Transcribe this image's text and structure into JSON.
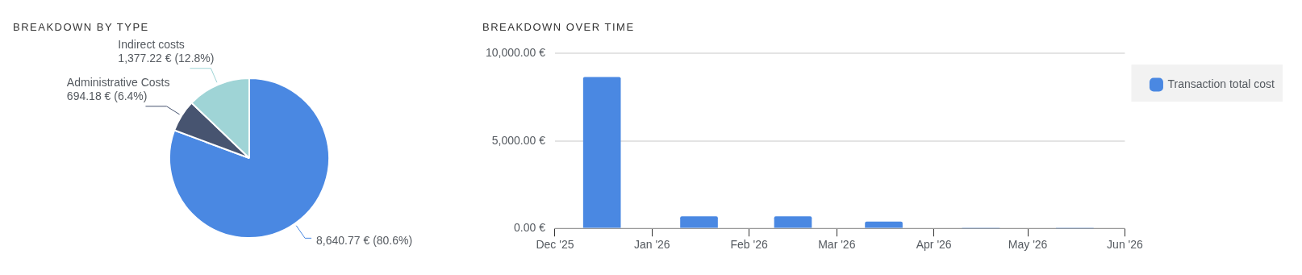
{
  "chart_data": [
    {
      "type": "pie",
      "title": "BREAKDOWN BY TYPE",
      "categories": [
        null,
        "Administrative Costs",
        "Indirect costs"
      ],
      "values": [
        8640.77,
        694.18,
        1377.22
      ],
      "colors": [
        "#4a88e2",
        "#475470",
        "#9fd4d6"
      ],
      "value_labels": [
        "8,640.77 € (80.6%)",
        "694.18 € (6.4%)",
        "1,377.22 € (12.8%)"
      ],
      "legend": false
    },
    {
      "type": "bar",
      "title": "BREAKDOWN OVER TIME",
      "x": [
        "2025-12-16",
        "2026-01-16",
        "2026-02-15",
        "2026-03-16",
        "2026-04-16",
        "2026-05-16"
      ],
      "series": [
        {
          "name": "Transaction total cost",
          "color": "#4a88e2",
          "values": [
            8640,
            680,
            680,
            370,
            0,
            0
          ]
        }
      ],
      "xlim": [
        "2025-12",
        "2026-06"
      ],
      "xticks": [
        {
          "value": "2025-12",
          "label": "Dec '25"
        },
        {
          "value": "2026-01",
          "label": "Jan '26"
        },
        {
          "value": "2026-02",
          "label": "Feb '26"
        },
        {
          "value": "2026-03",
          "label": "Mar '26"
        },
        {
          "value": "2026-04",
          "label": "Apr '26"
        },
        {
          "value": "2026-05",
          "label": "May '26"
        },
        {
          "value": "2026-06",
          "label": "Jun '26"
        }
      ],
      "ylim": [
        0,
        10000
      ],
      "yticks": [
        {
          "value": 0,
          "label": "0.00 €"
        },
        {
          "value": 5000,
          "label": "5,000.00 €"
        },
        {
          "value": 10000,
          "label": "10,000.00 €"
        }
      ],
      "grid": "y",
      "legend": "right"
    }
  ]
}
